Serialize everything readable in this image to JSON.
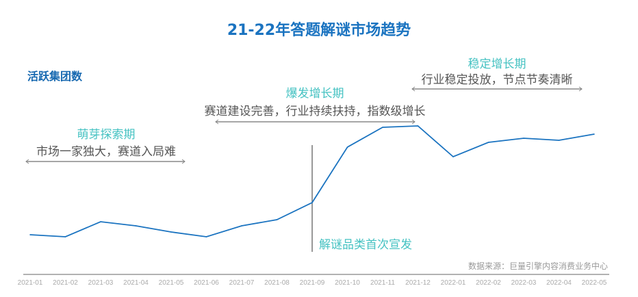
{
  "chart_data": {
    "type": "line",
    "title": "21-22年答题解谜市场趋势",
    "ylabel": "活跃集团数",
    "grid": false,
    "categories": [
      "2021-01",
      "2021-02",
      "2021-03",
      "2021-04",
      "2021-05",
      "2021-06",
      "2021-07",
      "2021-08",
      "2021-09",
      "2021-10",
      "2021-11",
      "2021-12",
      "2022-01",
      "2022-02",
      "2022-03",
      "2022-04",
      "2022-05"
    ],
    "values": [
      57,
      54,
      76,
      70,
      61,
      54,
      70,
      79,
      104,
      185,
      214,
      216,
      171,
      192,
      198,
      195,
      204
    ],
    "value_note_hidden": true,
    "line_color": "#1a73c0",
    "phases": [
      {
        "name": "萌芽探索期",
        "desc": "市场一家独大，赛道入局难",
        "from": "2021-01",
        "to": "2021-05"
      },
      {
        "name": "爆发增长期",
        "desc": "赛道建设完善，行业持续扶持，指数级增长",
        "from": "2021-06",
        "to": "2021-12"
      },
      {
        "name": "稳定增长期",
        "desc": "行业稳定投放，节点节奏清晰",
        "from": "2021-12",
        "to": "2022-05"
      }
    ],
    "event": {
      "label": "解谜品类首次宣发",
      "at": "2021-09"
    },
    "source": "数据来源：巨量引擎内容消费业务中心"
  }
}
